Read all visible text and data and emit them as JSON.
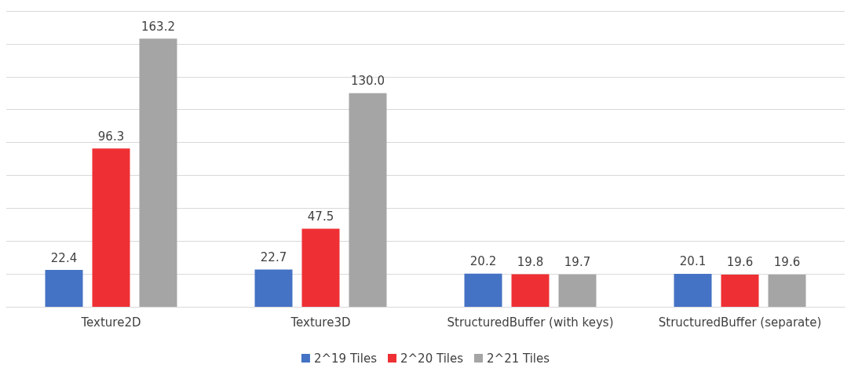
{
  "chart_data": {
    "type": "bar",
    "categories": [
      "Texture2D",
      "Texture3D",
      "StructuredBuffer (with keys)",
      "StructuredBuffer (separate)"
    ],
    "series": [
      {
        "name": "2^19 Tiles",
        "color": "#4472c4",
        "values": [
          22.4,
          22.7,
          20.2,
          20.1
        ],
        "value_labels": [
          "22.4",
          "22.7",
          "20.2",
          "20.1"
        ]
      },
      {
        "name": "2^20 Tiles",
        "color": "#ee3034",
        "values": [
          96.3,
          47.5,
          19.8,
          19.6
        ],
        "value_labels": [
          "96.3",
          "47.5",
          "19.8",
          "19.6"
        ]
      },
      {
        "name": "2^21 Tiles",
        "color": "#a5a5a5",
        "values": [
          163.2,
          130.0,
          19.7,
          19.6
        ],
        "value_labels": [
          "163.2",
          "130.0",
          "19.7",
          "19.6"
        ]
      }
    ],
    "ylim": [
      0,
      180
    ],
    "yticks": [
      {
        "value": 0,
        "label": null
      },
      {
        "value": 20,
        "label": null
      },
      {
        "value": 40,
        "label": null
      },
      {
        "value": 60,
        "label": null
      },
      {
        "value": 80,
        "label": null
      },
      {
        "value": 100,
        "label": null
      },
      {
        "value": 120,
        "label": null
      },
      {
        "value": 140,
        "label": null
      },
      {
        "value": 160,
        "label": null
      },
      {
        "value": 180,
        "label": null
      }
    ],
    "tick_labels": "x",
    "grid": "y",
    "legend": "bottom"
  }
}
